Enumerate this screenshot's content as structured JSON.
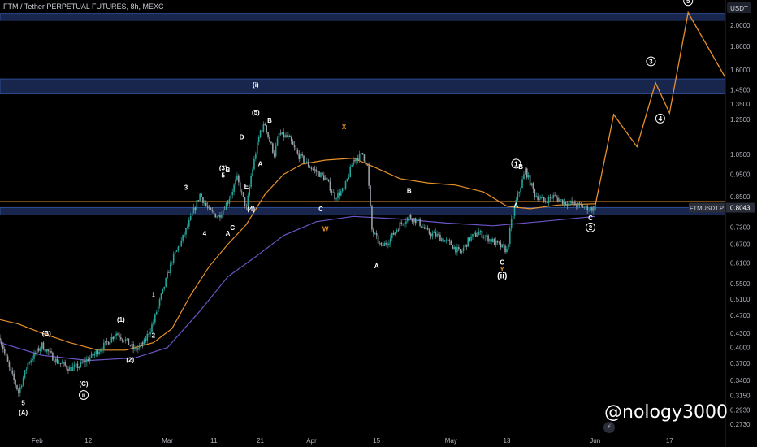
{
  "header": {
    "title": "FTM / Tether PERPETUAL FUTURES, 8h, MEXC"
  },
  "watermark": "@nology3000",
  "chart_data": {
    "type": "candlestick",
    "symbol": "FTMUSDT.P",
    "last_price": "0.8043",
    "axis_currency": "USDT",
    "y_scale": "log",
    "ylim": [
      0.262,
      2.25
    ],
    "xlim": [
      "2023-01-24",
      "2023-06-29"
    ],
    "price_ticks": [
      "2.0000",
      "1.8000",
      "1.6000",
      "1.4500",
      "1.3500",
      "1.2500",
      "1.0500",
      "0.9500",
      "0.8500",
      "0.7300",
      "0.6700",
      "0.6100",
      "0.5500",
      "0.5100",
      "0.4700",
      "0.4300",
      "0.4000",
      "0.3700",
      "0.3400",
      "0.3150",
      "0.2930",
      "0.2730"
    ],
    "time_ticks": [
      {
        "label": "Feb",
        "date": "2023-02-01"
      },
      {
        "label": "12",
        "date": "2023-02-12"
      },
      {
        "label": "Mar",
        "date": "2023-03-01"
      },
      {
        "label": "11",
        "date": "2023-03-11"
      },
      {
        "label": "21",
        "date": "2023-03-21"
      },
      {
        "label": "Apr",
        "date": "2023-04-01"
      },
      {
        "label": "15",
        "date": "2023-04-15"
      },
      {
        "label": "May",
        "date": "2023-05-01"
      },
      {
        "label": "13",
        "date": "2023-05-13"
      },
      {
        "label": "Jun",
        "date": "2023-06-01"
      },
      {
        "label": "17",
        "date": "2023-06-17"
      }
    ],
    "price_path": [
      [
        "2023-01-24",
        0.42
      ],
      [
        "2023-01-26",
        0.36
      ],
      [
        "2023-01-28",
        0.32
      ],
      [
        "2023-01-30",
        0.37
      ],
      [
        "2023-02-02",
        0.405
      ],
      [
        "2023-02-05",
        0.375
      ],
      [
        "2023-02-08",
        0.36
      ],
      [
        "2023-02-10",
        0.365
      ],
      [
        "2023-02-13",
        0.385
      ],
      [
        "2023-02-16",
        0.41
      ],
      [
        "2023-02-18",
        0.43
      ],
      [
        "2023-02-20",
        0.415
      ],
      [
        "2023-02-22",
        0.395
      ],
      [
        "2023-02-24",
        0.41
      ],
      [
        "2023-02-26",
        0.455
      ],
      [
        "2023-02-28",
        0.53
      ],
      [
        "2023-03-02",
        0.62
      ],
      [
        "2023-03-04",
        0.68
      ],
      [
        "2023-03-06",
        0.76
      ],
      [
        "2023-03-08",
        0.86
      ],
      [
        "2023-03-10",
        0.79
      ],
      [
        "2023-03-12",
        0.77
      ],
      [
        "2023-03-14",
        0.83
      ],
      [
        "2023-03-16",
        0.93
      ],
      [
        "2023-03-17",
        0.86
      ],
      [
        "2023-03-18",
        0.8
      ],
      [
        "2023-03-19",
        0.94
      ],
      [
        "2023-03-20",
        1.06
      ],
      [
        "2023-03-21",
        1.18
      ],
      [
        "2023-03-22",
        1.22
      ],
      [
        "2023-03-23",
        1.12
      ],
      [
        "2023-03-24",
        1.05
      ],
      [
        "2023-03-25",
        1.16
      ],
      [
        "2023-03-27",
        1.14
      ],
      [
        "2023-03-29",
        1.05
      ],
      [
        "2023-04-01",
        0.98
      ],
      [
        "2023-04-04",
        0.93
      ],
      [
        "2023-04-06",
        0.85
      ],
      [
        "2023-04-08",
        0.88
      ],
      [
        "2023-04-10",
        1.02
      ],
      [
        "2023-04-12",
        1.05
      ],
      [
        "2023-04-13",
        0.99
      ],
      [
        "2023-04-14",
        0.72
      ],
      [
        "2023-04-16",
        0.66
      ],
      [
        "2023-04-18",
        0.69
      ],
      [
        "2023-04-20",
        0.74
      ],
      [
        "2023-04-22",
        0.77
      ],
      [
        "2023-04-24",
        0.75
      ],
      [
        "2023-04-26",
        0.71
      ],
      [
        "2023-04-28",
        0.7
      ],
      [
        "2023-05-01",
        0.67
      ],
      [
        "2023-05-03",
        0.64
      ],
      [
        "2023-05-05",
        0.69
      ],
      [
        "2023-05-07",
        0.71
      ],
      [
        "2023-05-09",
        0.69
      ],
      [
        "2023-05-11",
        0.67
      ],
      [
        "2023-05-13",
        0.65
      ],
      [
        "2023-05-14",
        0.75
      ],
      [
        "2023-05-15",
        0.83
      ],
      [
        "2023-05-17",
        0.97
      ],
      [
        "2023-05-19",
        0.86
      ],
      [
        "2023-05-21",
        0.83
      ],
      [
        "2023-05-23",
        0.85
      ],
      [
        "2023-05-25",
        0.83
      ],
      [
        "2023-05-27",
        0.82
      ],
      [
        "2023-05-29",
        0.81
      ],
      [
        "2023-05-31",
        0.8
      ],
      [
        "2023-06-01",
        0.8043
      ]
    ],
    "series": [
      {
        "name": "",
        "color": "#e8912b",
        "points": [
          [
            "2023-01-24",
            0.46
          ],
          [
            "2023-01-28",
            0.45
          ],
          [
            "2023-02-02",
            0.43
          ],
          [
            "2023-02-08",
            0.41
          ],
          [
            "2023-02-14",
            0.395
          ],
          [
            "2023-02-20",
            0.395
          ],
          [
            "2023-02-26",
            0.41
          ],
          [
            "2023-03-02",
            0.44
          ],
          [
            "2023-03-06",
            0.52
          ],
          [
            "2023-03-10",
            0.6
          ],
          [
            "2023-03-14",
            0.67
          ],
          [
            "2023-03-18",
            0.74
          ],
          [
            "2023-03-22",
            0.86
          ],
          [
            "2023-03-26",
            0.95
          ],
          [
            "2023-03-30",
            1.0
          ],
          [
            "2023-04-04",
            1.02
          ],
          [
            "2023-04-10",
            1.03
          ],
          [
            "2023-04-14",
            0.99
          ],
          [
            "2023-04-20",
            0.93
          ],
          [
            "2023-04-26",
            0.91
          ],
          [
            "2023-05-02",
            0.9
          ],
          [
            "2023-05-08",
            0.87
          ],
          [
            "2023-05-13",
            0.81
          ],
          [
            "2023-05-18",
            0.8
          ],
          [
            "2023-05-24",
            0.815
          ],
          [
            "2023-06-01",
            0.82
          ]
        ]
      },
      {
        "name": "",
        "color": "#6a55c4",
        "points": [
          [
            "2023-01-24",
            0.41
          ],
          [
            "2023-02-02",
            0.385
          ],
          [
            "2023-02-12",
            0.375
          ],
          [
            "2023-02-22",
            0.38
          ],
          [
            "2023-03-01",
            0.4
          ],
          [
            "2023-03-08",
            0.48
          ],
          [
            "2023-03-14",
            0.57
          ],
          [
            "2023-03-20",
            0.63
          ],
          [
            "2023-03-26",
            0.7
          ],
          [
            "2023-04-02",
            0.75
          ],
          [
            "2023-04-10",
            0.77
          ],
          [
            "2023-04-20",
            0.76
          ],
          [
            "2023-04-30",
            0.745
          ],
          [
            "2023-05-10",
            0.735
          ],
          [
            "2023-05-20",
            0.75
          ],
          [
            "2023-06-01",
            0.77
          ]
        ]
      }
    ],
    "projection": {
      "color": "#e8912b",
      "points": [
        [
          "2023-06-01",
          0.81
        ],
        [
          "2023-06-05",
          1.28
        ],
        [
          "2023-06-10",
          1.09
        ],
        [
          "2023-06-14",
          1.5
        ],
        [
          "2023-06-17",
          1.29
        ],
        [
          "2023-06-21",
          2.13
        ],
        [
          "2023-06-29",
          1.54
        ]
      ]
    },
    "zones": [
      {
        "from": "2.05",
        "to": "2.12"
      },
      {
        "from": "1.42",
        "to": "1.53"
      },
      {
        "from": "0.776",
        "to": "0.805"
      }
    ],
    "hline": {
      "value": "0.830",
      "color": "#e8912b"
    },
    "wave_labels": [
      {
        "text": "4",
        "date": "2023-01-23",
        "price": 0.44,
        "color": "#ffffff"
      },
      {
        "text": "5",
        "date": "2023-01-29",
        "price": 0.3,
        "color": "#ffffff"
      },
      {
        "text": "(A)",
        "date": "2023-01-29",
        "price": 0.286,
        "color": "#ffffff"
      },
      {
        "text": "(B)",
        "date": "2023-02-03",
        "price": 0.425,
        "color": "#ffffff"
      },
      {
        "text": "(C)",
        "date": "2023-02-11",
        "price": 0.33,
        "color": "#ffffff"
      },
      {
        "text": "ii",
        "date": "2023-02-11",
        "price": 0.312,
        "color": "#ffffff",
        "circled": true
      },
      {
        "text": "(1)",
        "date": "2023-02-19",
        "price": 0.455,
        "color": "#ffffff"
      },
      {
        "text": "(2)",
        "date": "2023-02-21",
        "price": 0.372,
        "color": "#ffffff"
      },
      {
        "text": "2",
        "date": "2023-02-26",
        "price": 0.42,
        "color": "#ffffff"
      },
      {
        "text": "1",
        "date": "2023-02-26",
        "price": 0.515,
        "color": "#ffffff"
      },
      {
        "text": "3",
        "date": "2023-03-05",
        "price": 0.88,
        "color": "#ffffff"
      },
      {
        "text": "4",
        "date": "2023-03-09",
        "price": 0.7,
        "color": "#ffffff"
      },
      {
        "text": "(3)",
        "date": "2023-03-13",
        "price": 0.97,
        "color": "#ffffff"
      },
      {
        "text": "5",
        "date": "2023-03-13",
        "price": 0.935,
        "color": "#ffffff"
      },
      {
        "text": "B",
        "date": "2023-03-14",
        "price": 0.96,
        "color": "#ffffff"
      },
      {
        "text": "A",
        "date": "2023-03-14",
        "price": 0.7,
        "color": "#ffffff"
      },
      {
        "text": "C",
        "date": "2023-03-15",
        "price": 0.72,
        "color": "#ffffff"
      },
      {
        "text": "D",
        "date": "2023-03-17",
        "price": 1.13,
        "color": "#ffffff"
      },
      {
        "text": "E",
        "date": "2023-03-18",
        "price": 0.885,
        "color": "#ffffff"
      },
      {
        "text": "(4)",
        "date": "2023-03-19",
        "price": 0.79,
        "color": "#ffffff"
      },
      {
        "text": "(5)",
        "date": "2023-03-20",
        "price": 1.28,
        "color": "#ffffff"
      },
      {
        "text": "(i)",
        "date": "2023-03-20",
        "price": 1.47,
        "color": "#ffffff"
      },
      {
        "text": "A",
        "date": "2023-03-21",
        "price": 0.99,
        "color": "#ffffff"
      },
      {
        "text": "B",
        "date": "2023-03-23",
        "price": 1.23,
        "color": "#ffffff"
      },
      {
        "text": "X",
        "date": "2023-04-08",
        "price": 1.19,
        "color": "#e8912b"
      },
      {
        "text": "C",
        "date": "2023-04-03",
        "price": 0.79,
        "color": "#ffffff"
      },
      {
        "text": "W",
        "date": "2023-04-04",
        "price": 0.715,
        "color": "#e8912b"
      },
      {
        "text": "A",
        "date": "2023-04-15",
        "price": 0.595,
        "color": "#ffffff"
      },
      {
        "text": "B",
        "date": "2023-04-22",
        "price": 0.865,
        "color": "#ffffff"
      },
      {
        "text": "C",
        "date": "2023-05-12",
        "price": 0.605,
        "color": "#ffffff"
      },
      {
        "text": "Y",
        "date": "2023-05-12",
        "price": 0.585,
        "color": "#e8912b"
      },
      {
        "text": "ii",
        "date": "2023-05-12",
        "price": 0.565,
        "color": "#ffffff",
        "paren": true
      },
      {
        "text": "1",
        "date": "2023-05-15",
        "price": 0.99,
        "color": "#ffffff",
        "circled": true
      },
      {
        "text": "B",
        "date": "2023-05-16",
        "price": 0.975,
        "color": "#ffffff"
      },
      {
        "text": "A",
        "date": "2023-05-15",
        "price": 0.805,
        "color": "#ffffff"
      },
      {
        "text": "C",
        "date": "2023-05-31",
        "price": 0.755,
        "color": "#ffffff"
      },
      {
        "text": "2",
        "date": "2023-05-31",
        "price": 0.72,
        "color": "#ffffff",
        "circled": true
      },
      {
        "text": "3",
        "date": "2023-06-13",
        "price": 1.65,
        "color": "#ffffff",
        "circled": true
      },
      {
        "text": "4",
        "date": "2023-06-15",
        "price": 1.24,
        "color": "#ffffff",
        "circled": true
      },
      {
        "text": "5",
        "date": "2023-06-21",
        "price": 2.23,
        "color": "#ffffff",
        "circled": true
      }
    ]
  }
}
